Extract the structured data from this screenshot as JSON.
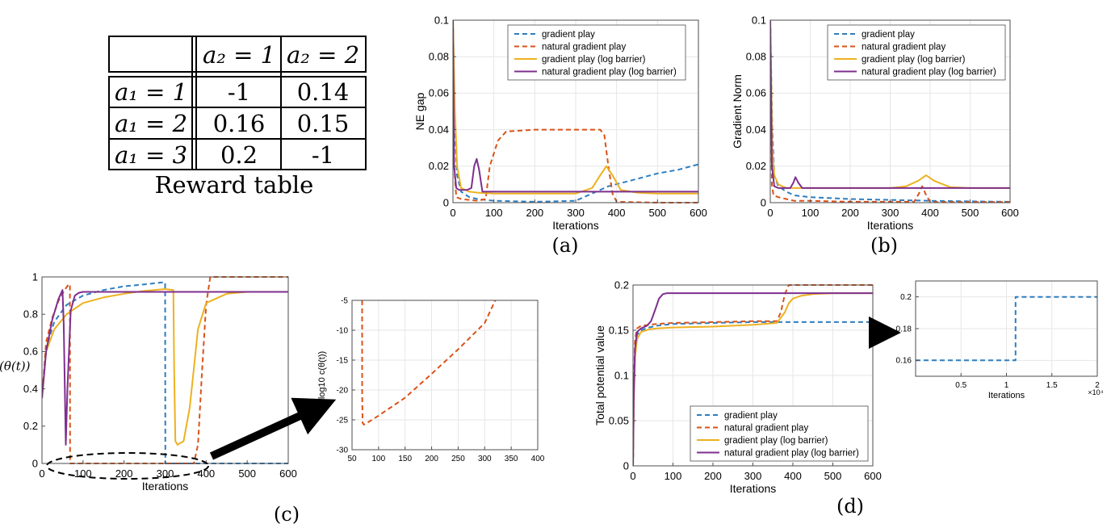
{
  "reward_table": {
    "col_headers": [
      "a₂ = 1",
      "a₂ = 2"
    ],
    "rows": [
      {
        "label": "a₁ = 1",
        "values": [
          "-1",
          "0.14"
        ]
      },
      {
        "label": "a₁ = 2",
        "values": [
          "0.16",
          "0.15"
        ]
      },
      {
        "label": "a₁ = 3",
        "values": [
          "0.2",
          "-1"
        ]
      }
    ],
    "caption": "Reward table"
  },
  "colors": {
    "gradient_play": "#2e7ebf",
    "natural_gradient_play": "#d95319",
    "gp_log_barrier": "#edb120",
    "ngp_log_barrier": "#7e2f8e"
  },
  "chart_data": [
    {
      "id": "a",
      "type": "line",
      "caption": "(a)",
      "xlabel": "Iterations",
      "ylabel": "NE gap",
      "xlim": [
        0,
        600
      ],
      "ylim": [
        0,
        0.1
      ],
      "xticks": [
        0,
        100,
        200,
        300,
        400,
        500,
        600
      ],
      "yticks": [
        0,
        0.02,
        0.04,
        0.06,
        0.08,
        0.1
      ],
      "ytick_labels": [
        "0",
        "0.02",
        "0.04",
        "0.06",
        "0.08",
        "0.1"
      ],
      "grid": true,
      "legend_position": "top-right",
      "series": [
        {
          "name": "gradient play",
          "style": "dashed",
          "color": "#2e7ebf",
          "x": [
            0,
            5,
            10,
            20,
            40,
            60,
            100,
            200,
            300,
            320,
            380,
            450,
            500,
            550,
            600
          ],
          "y": [
            0.1,
            0.04,
            0.015,
            0.006,
            0.003,
            0.002,
            0.001,
            0.0005,
            0.001,
            0.003,
            0.009,
            0.013,
            0.016,
            0.018,
            0.021
          ]
        },
        {
          "name": "natural gradient play",
          "style": "dashed",
          "color": "#d95319",
          "x": [
            0,
            3,
            8,
            20,
            60,
            80,
            90,
            110,
            130,
            200,
            300,
            360,
            370,
            380,
            390,
            400,
            500,
            600
          ],
          "y": [
            0.1,
            0.02,
            0.003,
            0.002,
            0.001,
            0.002,
            0.02,
            0.034,
            0.039,
            0.04,
            0.04,
            0.04,
            0.037,
            0.02,
            0.005,
            0.0005,
            0,
            0
          ]
        },
        {
          "name": "gradient play (log barrier)",
          "style": "solid",
          "color": "#edb120",
          "x": [
            0,
            5,
            10,
            20,
            40,
            60,
            100,
            200,
            300,
            340,
            360,
            375,
            390,
            410,
            450,
            500,
            600
          ],
          "y": [
            0.1,
            0.05,
            0.02,
            0.008,
            0.006,
            0.0055,
            0.005,
            0.005,
            0.005,
            0.008,
            0.015,
            0.02,
            0.015,
            0.007,
            0.0055,
            0.005,
            0.005
          ]
        },
        {
          "name": "natural gradient play (log barrier)",
          "style": "solid",
          "color": "#7e2f8e",
          "x": [
            0,
            3,
            8,
            15,
            35,
            45,
            52,
            58,
            64,
            72,
            100,
            200,
            300,
            400,
            500,
            600
          ],
          "y": [
            0.1,
            0.02,
            0.008,
            0.007,
            0.007,
            0.008,
            0.02,
            0.024,
            0.018,
            0.006,
            0.006,
            0.006,
            0.006,
            0.006,
            0.006,
            0.006
          ]
        }
      ]
    },
    {
      "id": "b",
      "type": "line",
      "caption": "(b)",
      "xlabel": "Iterations",
      "ylabel": "Gradient Norm",
      "xlim": [
        0,
        600
      ],
      "ylim": [
        0,
        0.1
      ],
      "xticks": [
        0,
        100,
        200,
        300,
        400,
        500,
        600
      ],
      "yticks": [
        0,
        0.02,
        0.04,
        0.06,
        0.08,
        0.1
      ],
      "ytick_labels": [
        "0",
        "0.02",
        "0.04",
        "0.06",
        "0.08",
        "0.1"
      ],
      "grid": true,
      "legend_position": "top-right",
      "series": [
        {
          "name": "gradient play",
          "style": "dashed",
          "color": "#2e7ebf",
          "x": [
            0,
            5,
            10,
            20,
            40,
            60,
            100,
            200,
            300,
            400,
            500,
            600
          ],
          "y": [
            0.1,
            0.04,
            0.015,
            0.009,
            0.006,
            0.004,
            0.003,
            0.002,
            0.0015,
            0.001,
            0.0007,
            0.0005
          ]
        },
        {
          "name": "natural gradient play",
          "style": "dashed",
          "color": "#d95319",
          "x": [
            0,
            4,
            8,
            20,
            40,
            60,
            100,
            200,
            300,
            360,
            372,
            380,
            388,
            400,
            500,
            600
          ],
          "y": [
            0.1,
            0.01,
            0.004,
            0.003,
            0.002,
            0.001,
            0.001,
            0.0005,
            0.0005,
            0.0005,
            0.005,
            0.009,
            0.005,
            0.0003,
            0.0003,
            0.0003
          ]
        },
        {
          "name": "gradient play (log barrier)",
          "style": "solid",
          "color": "#edb120",
          "x": [
            0,
            5,
            10,
            20,
            40,
            60,
            100,
            200,
            300,
            340,
            370,
            390,
            410,
            450,
            500,
            600
          ],
          "y": [
            0.1,
            0.03,
            0.015,
            0.01,
            0.008,
            0.008,
            0.008,
            0.008,
            0.008,
            0.009,
            0.012,
            0.015,
            0.012,
            0.0085,
            0.008,
            0.008
          ]
        },
        {
          "name": "natural gradient play (log barrier)",
          "style": "solid",
          "color": "#7e2f8e",
          "x": [
            0,
            4,
            10,
            20,
            35,
            50,
            58,
            63,
            70,
            80,
            100,
            200,
            300,
            400,
            500,
            600
          ],
          "y": [
            0.1,
            0.02,
            0.009,
            0.008,
            0.008,
            0.008,
            0.011,
            0.014,
            0.011,
            0.008,
            0.008,
            0.008,
            0.008,
            0.008,
            0.008,
            0.008
          ]
        }
      ]
    },
    {
      "id": "c",
      "type": "line",
      "caption": "(c)",
      "xlabel": "Iterations",
      "ylabel": "c(θ(t))",
      "xlim": [
        0,
        600
      ],
      "ylim": [
        0,
        1
      ],
      "xticks": [
        0,
        100,
        200,
        300,
        400,
        500,
        600
      ],
      "xtick_labels": [
        "0",
        "100",
        "200",
        "300",
        "400",
        "500",
        "600"
      ],
      "yticks": [
        0,
        0.2,
        0.4,
        0.6,
        0.8,
        1
      ],
      "ytick_labels": [
        "0",
        "0.2",
        "0.4",
        "0.6",
        "0.8",
        "1"
      ],
      "grid": false,
      "series": [
        {
          "name": "gradient play",
          "style": "dashed",
          "color": "#2e7ebf",
          "x": [
            0,
            10,
            30,
            60,
            100,
            150,
            200,
            250,
            290,
            300,
            300.5,
            320,
            400,
            500,
            600
          ],
          "y": [
            0.35,
            0.62,
            0.76,
            0.85,
            0.9,
            0.93,
            0.95,
            0.96,
            0.97,
            0.97,
            0,
            0,
            0,
            0,
            0
          ]
        },
        {
          "name": "natural gradient play",
          "style": "dashed",
          "color": "#d95319",
          "x": [
            0,
            10,
            25,
            40,
            55,
            65,
            68,
            68.5,
            100,
            200,
            350,
            370,
            380,
            390,
            400,
            410,
            500,
            600
          ],
          "y": [
            0.35,
            0.65,
            0.78,
            0.87,
            0.93,
            0.96,
            0.96,
            0,
            0,
            0,
            0,
            0,
            0.1,
            0.5,
            0.85,
            1,
            1,
            1
          ]
        },
        {
          "name": "gradient play (log barrier)",
          "style": "solid",
          "color": "#edb120",
          "x": [
            0,
            10,
            30,
            60,
            100,
            150,
            200,
            250,
            300,
            320,
            322,
            325,
            330,
            345,
            360,
            380,
            400,
            450,
            500,
            600
          ],
          "y": [
            0.35,
            0.6,
            0.72,
            0.8,
            0.86,
            0.89,
            0.91,
            0.925,
            0.935,
            0.93,
            0.5,
            0.12,
            0.1,
            0.12,
            0.3,
            0.72,
            0.86,
            0.91,
            0.92,
            0.92
          ]
        },
        {
          "name": "natural gradient play (log barrier)",
          "style": "solid",
          "color": "#7e2f8e",
          "x": [
            0,
            10,
            25,
            40,
            50,
            53,
            58,
            62,
            70,
            80,
            90,
            100,
            200,
            300,
            400,
            500,
            600
          ],
          "y": [
            0.35,
            0.6,
            0.77,
            0.88,
            0.93,
            0.75,
            0.1,
            0.4,
            0.82,
            0.9,
            0.915,
            0.92,
            0.92,
            0.92,
            0.92,
            0.92,
            0.92
          ]
        }
      ]
    },
    {
      "id": "c_inset",
      "type": "line",
      "xlabel": "",
      "ylabel": "log10 c(θ(t))",
      "xlim": [
        50,
        400
      ],
      "ylim": [
        -30,
        -5
      ],
      "xticks": [
        50,
        100,
        150,
        200,
        250,
        300,
        350,
        400
      ],
      "yticks": [
        -30,
        -25,
        -20,
        -15,
        -10,
        -5
      ],
      "ytick_labels": [
        "-30",
        "-25",
        "-20",
        "-15",
        "-10",
        "-5"
      ],
      "grid": true,
      "series": [
        {
          "name": "natural gradient play",
          "style": "dashed",
          "color": "#d95319",
          "x": [
            69,
            69,
            70,
            72,
            75,
            100,
            150,
            200,
            250,
            300,
            320
          ],
          "y": [
            -5,
            -20,
            -25.5,
            -25.8,
            -25.7,
            -24.3,
            -21.3,
            -17.3,
            -13.2,
            -8.8,
            -5
          ]
        }
      ]
    },
    {
      "id": "d",
      "type": "line",
      "caption": "(d)",
      "xlabel": "Iterations",
      "ylabel": "Total potential value",
      "xlim": [
        0,
        600
      ],
      "ylim": [
        0,
        0.2
      ],
      "xticks": [
        0,
        100,
        200,
        300,
        400,
        500,
        600
      ],
      "yticks": [
        0,
        0.05,
        0.1,
        0.15,
        0.2
      ],
      "ytick_labels": [
        "0",
        "0.05",
        "0.1",
        "0.15",
        "0.2"
      ],
      "grid": true,
      "legend_position": "bottom-right",
      "series": [
        {
          "name": "gradient play",
          "style": "dashed",
          "color": "#2e7ebf",
          "x": [
            0,
            2,
            5,
            10,
            20,
            40,
            60,
            100,
            200,
            300,
            400,
            500,
            600
          ],
          "y": [
            0,
            0.08,
            0.13,
            0.145,
            0.15,
            0.153,
            0.155,
            0.157,
            0.158,
            0.159,
            0.159,
            0.159,
            0.159
          ]
        },
        {
          "name": "natural gradient play",
          "style": "dashed",
          "color": "#d95319",
          "x": [
            0,
            2,
            5,
            10,
            20,
            60,
            100,
            200,
            300,
            360,
            370,
            380,
            390,
            400,
            500,
            600
          ],
          "y": [
            0,
            0.09,
            0.14,
            0.152,
            0.155,
            0.157,
            0.158,
            0.159,
            0.16,
            0.16,
            0.17,
            0.19,
            0.2,
            0.2,
            0.2,
            0.2
          ]
        },
        {
          "name": "gradient play (log barrier)",
          "style": "solid",
          "color": "#edb120",
          "x": [
            0,
            2,
            5,
            10,
            20,
            40,
            60,
            100,
            200,
            300,
            360,
            380,
            390,
            400,
            420,
            450,
            500,
            600
          ],
          "y": [
            0,
            0.07,
            0.12,
            0.14,
            0.148,
            0.151,
            0.152,
            0.153,
            0.154,
            0.156,
            0.158,
            0.17,
            0.18,
            0.185,
            0.188,
            0.19,
            0.191,
            0.191
          ]
        },
        {
          "name": "natural gradient play (log barrier)",
          "style": "solid",
          "color": "#7e2f8e",
          "x": [
            0,
            2,
            5,
            10,
            20,
            35,
            45,
            55,
            65,
            75,
            85,
            100,
            200,
            300,
            400,
            500,
            600
          ],
          "y": [
            0,
            0.08,
            0.13,
            0.148,
            0.152,
            0.155,
            0.16,
            0.172,
            0.185,
            0.19,
            0.191,
            0.191,
            0.191,
            0.191,
            0.191,
            0.191,
            0.191
          ]
        }
      ]
    },
    {
      "id": "d_inset",
      "type": "line",
      "xlabel": "Iterations",
      "ylabel": "",
      "xlim": [
        0,
        20000
      ],
      "ylim": [
        0.15,
        0.21
      ],
      "xticks": [
        5000,
        10000,
        15000,
        20000
      ],
      "xtick_labels": [
        "0.5",
        "1",
        "1.5",
        "2"
      ],
      "x_exponent": "×10⁴",
      "yticks": [
        0.16,
        0.18,
        0.2
      ],
      "ytick_labels": [
        "0.16",
        "0.18",
        "0.2"
      ],
      "grid": true,
      "series": [
        {
          "name": "gradient play",
          "style": "dashed",
          "color": "#2e7ebf",
          "x": [
            0,
            11000,
            11000,
            20000
          ],
          "y": [
            0.16,
            0.16,
            0.2,
            0.2
          ]
        }
      ]
    }
  ]
}
